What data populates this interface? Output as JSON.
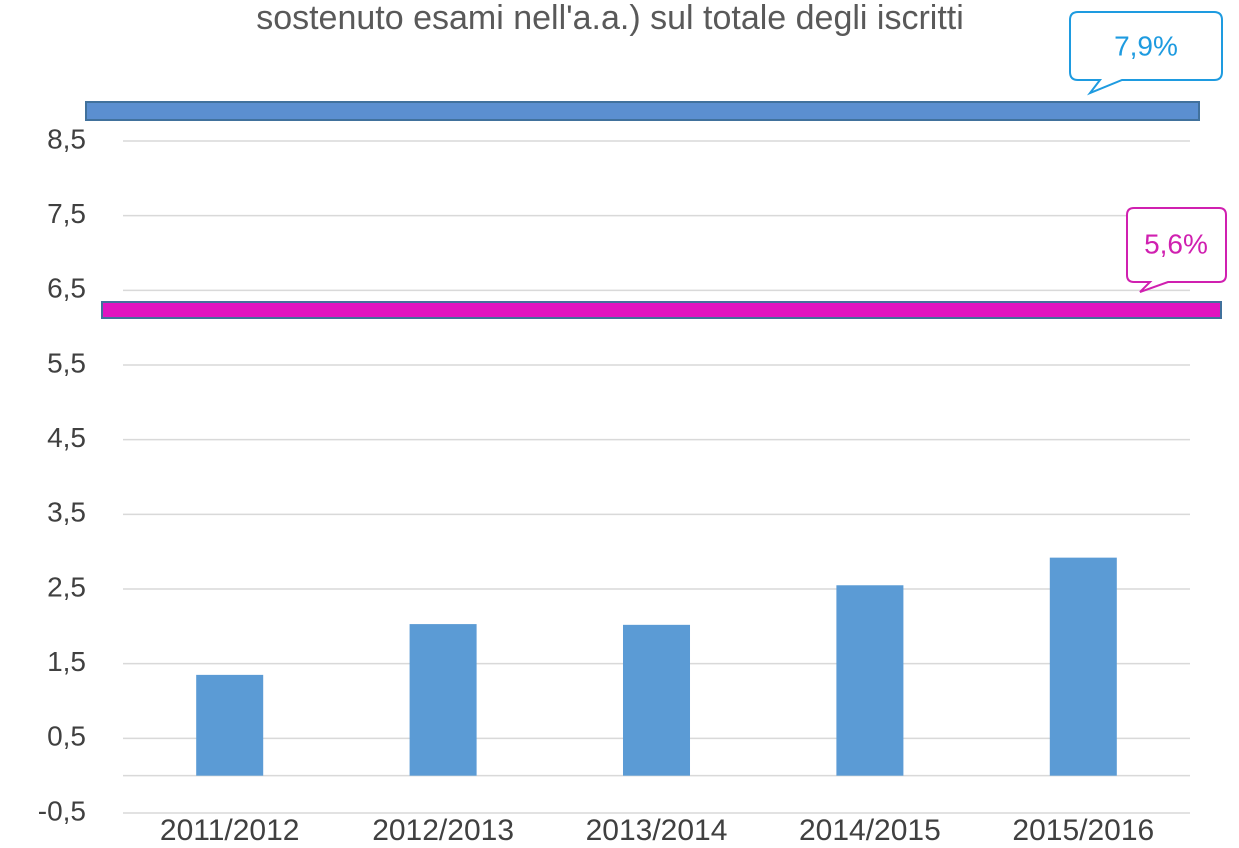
{
  "chart_data": {
    "type": "bar",
    "title": "sostenuto esami nell'a.a.) sul totale degli iscritti",
    "categories": [
      "2011/2012",
      "2012/2013",
      "2013/2014",
      "2014/2015",
      "2015/2016"
    ],
    "values": [
      1.35,
      2.03,
      2.02,
      2.55,
      2.92
    ],
    "color": "#5b9bd5",
    "ylim": [
      -0.5,
      8.5
    ],
    "yticks": [
      {
        "value": -0.5,
        "label": "-0,5"
      },
      {
        "value": 0.5,
        "label": "0,5"
      },
      {
        "value": 1.5,
        "label": "1,5"
      },
      {
        "value": 2.5,
        "label": "2,5"
      },
      {
        "value": 3.5,
        "label": "3,5"
      },
      {
        "value": 4.5,
        "label": "4,5"
      },
      {
        "value": 5.5,
        "label": "5,5"
      },
      {
        "value": 6.5,
        "label": "6,5"
      },
      {
        "value": 7.5,
        "label": "7,5"
      },
      {
        "value": 8.5,
        "label": "8,5"
      }
    ],
    "grid": true,
    "annotations": [
      {
        "label": "7,9%",
        "color": "#1e9be0",
        "band_color": "#5b8fd0"
      },
      {
        "label": "5,6%",
        "color": "#d020b0",
        "band_color": "#e014c0"
      }
    ]
  }
}
